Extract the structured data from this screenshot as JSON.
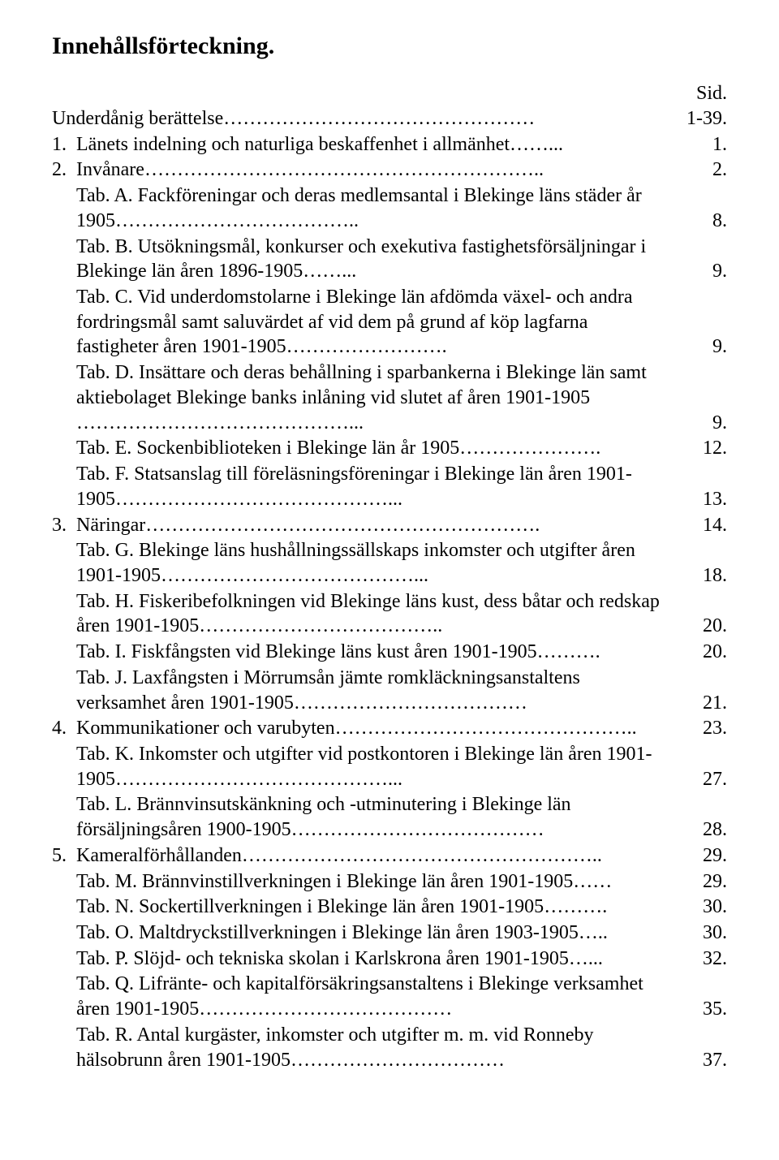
{
  "title": "Innehållsförteckning.",
  "sid_label": "Sid.",
  "entries": [
    {
      "prefix": "",
      "text": "Underdånig berättelse",
      "leader": "…………………………………………",
      "page": "1-39."
    },
    {
      "prefix": "1.  ",
      "text": "Länets indelning och naturliga beskaffenhet i allmänhet",
      "leader": "……...",
      "page": "1."
    },
    {
      "prefix": "2.  ",
      "text": "Invånare",
      "leader": "……………………………………………………..",
      "page": "2."
    },
    {
      "prefix": "     ",
      "text": "Tab. A.   Fackföreningar och deras medlemsantal i Blekinge läns städer år 1905",
      "leader": "………………………………..",
      "page": "8."
    },
    {
      "prefix": "     ",
      "text": "Tab. B.   Utsökningsmål, konkurser och exekutiva fastighetsförsäljningar i Blekinge län åren 1896-1905",
      "leader": "……...",
      "page": "9."
    },
    {
      "prefix": "     ",
      "text": "Tab. C.   Vid underdomstolarne i Blekinge län afdömda växel- och andra fordringsmål samt saluvärdet af vid dem på grund af köp lagfarna fastigheter åren 1901-1905",
      "leader": "…………………….",
      "page": "9."
    },
    {
      "prefix": "     ",
      "text": "Tab. D.   Insättare och deras behållning i sparbankerna i Blekinge län samt aktiebolaget Blekinge banks inlåning vid slutet af åren 1901-1905",
      "leader": "……………………………………...",
      "page": "9."
    },
    {
      "prefix": "     ",
      "text": "Tab. E.   Sockenbiblioteken i Blekinge län år 1905",
      "leader": "………………….",
      "page": "12."
    },
    {
      "prefix": "     ",
      "text": "Tab. F.   Statsanslag till föreläsningsföreningar i Blekinge län åren 1901-1905",
      "leader": "……………………………………...",
      "page": "13."
    },
    {
      "prefix": "3.  ",
      "text": "Näringar",
      "leader": "…………………………………………………….",
      "page": "14."
    },
    {
      "prefix": "     ",
      "text": "Tab. G.   Blekinge läns hushållningssällskaps inkomster och utgifter åren 1901-1905",
      "leader": "…………………………………...",
      "page": "18."
    },
    {
      "prefix": "     ",
      "text": "Tab. H.   Fiskeribefolkningen vid Blekinge läns kust, dess båtar och redskap åren 1901-1905",
      "leader": "………………………………..",
      "page": "20."
    },
    {
      "prefix": "     ",
      "text": "Tab. I.    Fiskfångsten vid Blekinge läns kust åren 1901-1905",
      "leader": "……….",
      "page": "20."
    },
    {
      "prefix": "     ",
      "text": "Tab. J.    Laxfångsten i Mörrumsån jämte romkläckningsanstaltens verksamhet åren 1901-1905",
      "leader": "………………………………",
      "page": "21."
    },
    {
      "prefix": "4.  ",
      "text": "Kommunikationer och varubyten",
      "leader": "………………………………………..",
      "page": "23."
    },
    {
      "prefix": "     ",
      "text": "Tab. K.   Inkomster och utgifter vid postkontoren i Blekinge län åren 1901-1905",
      "leader": "……………………………………...",
      "page": "27."
    },
    {
      "prefix": "     ",
      "text": "Tab. L.   Brännvinsutskänkning och -utminutering i Blekinge län försäljningsåren 1900-1905",
      "leader": "…………………………………",
      "page": "28."
    },
    {
      "prefix": "5.  ",
      "text": "Kameralförhållanden",
      "leader": "………………………………………………..",
      "page": "29."
    },
    {
      "prefix": "     ",
      "text": "Tab. M.  Brännvinstillverkningen i Blekinge län åren 1901-1905",
      "leader": "……",
      "page": "29."
    },
    {
      "prefix": "     ",
      "text": "Tab. N.   Sockertillverkningen i Blekinge län åren 1901-1905",
      "leader": "……….",
      "page": "30."
    },
    {
      "prefix": "     ",
      "text": "Tab. O.   Maltdryckstillverkningen i Blekinge län åren 1903-1905",
      "leader": "…..",
      "page": "30."
    },
    {
      "prefix": "     ",
      "text": "Tab. P.   Slöjd- och tekniska skolan i Karlskrona åren 1901-1905",
      "leader": "…...",
      "page": "32."
    },
    {
      "prefix": "     ",
      "text": "Tab. Q.   Lifränte- och kapitalförsäkringsanstaltens i Blekinge verksamhet åren 1901-1905",
      "leader": "…………………………………",
      "page": "35."
    },
    {
      "prefix": "     ",
      "text": "Tab. R.   Antal kurgäster, inkomster och utgifter m. m. vid Ronneby hälsobrunn åren 1901-1905",
      "leader": "……………………………",
      "page": "37."
    }
  ]
}
